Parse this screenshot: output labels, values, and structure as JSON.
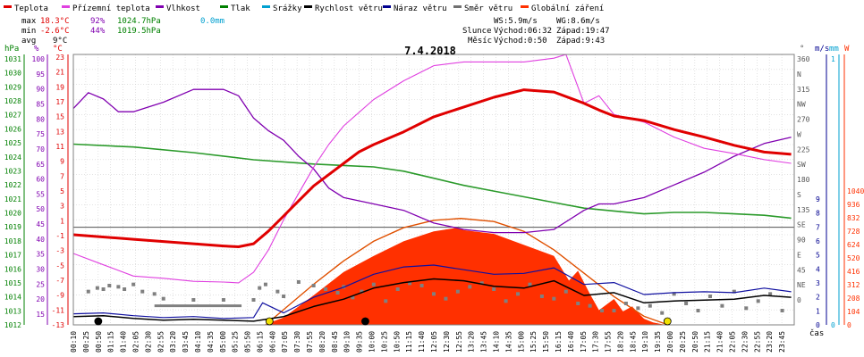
{
  "legend": [
    {
      "label": "Teplota",
      "color": "#e00000"
    },
    {
      "label": "Přízemní teplota",
      "color": "#e040e0"
    },
    {
      "label": "Vlhkost",
      "color": "#8000b0"
    },
    {
      "label": "Tlak",
      "color": "#008000"
    },
    {
      "label": "Srážky",
      "color": "#00a0d0"
    },
    {
      "label": "Rychlost větru",
      "color": "#000000"
    },
    {
      "label": "Náraz větru",
      "color": "#000090"
    },
    {
      "label": "Směr větru",
      "color": "#707070"
    },
    {
      "label": "Globální záření",
      "color": "#ff3000"
    }
  ],
  "stats": {
    "max_label": "max",
    "min_label": "min",
    "avg_label": "avg",
    "max_temp": "18.3°C",
    "max_hum": "92%",
    "max_press": "1024.7hPa",
    "max_rain": "0.0mm",
    "min_temp": "-2.6°C",
    "min_hum": "44%",
    "min_press": "1019.5hPa",
    "avg_temp": "9°C"
  },
  "wind_info": {
    "ws": "WS:5.9m/s",
    "wg": "WG:8.6m/s"
  },
  "sun_info": {
    "sun_label": "Slunce",
    "sun_rise": "Východ:06:32",
    "sun_set": "Západ:19:47",
    "moon_label": "Měsíc",
    "moon_rise": "Východ:0:50",
    "moon_set": "Západ:9:43"
  },
  "date": "7.4.2018",
  "axis_headers": {
    "hpa": "hPa",
    "pct": "%",
    "degc": "°C",
    "deg": "°",
    "ms": "m/s",
    "mm": "mm",
    "w": "W"
  },
  "x_title": "čas",
  "chart_data": {
    "type": "line",
    "title": "7.4.2018",
    "x_ticks": [
      "00:10",
      "00:25",
      "00:50",
      "01:15",
      "01:40",
      "02:05",
      "02:30",
      "02:55",
      "03:20",
      "03:45",
      "04:10",
      "04:35",
      "05:00",
      "05:25",
      "05:50",
      "06:15",
      "06:40",
      "07:05",
      "07:30",
      "07:55",
      "08:20",
      "08:45",
      "09:10",
      "09:35",
      "10:00",
      "10:25",
      "10:50",
      "11:15",
      "11:40",
      "12:05",
      "12:30",
      "12:55",
      "13:20",
      "13:45",
      "14:10",
      "14:35",
      "15:00",
      "15:25",
      "15:50",
      "16:15",
      "16:40",
      "17:05",
      "17:30",
      "17:55",
      "18:20",
      "18:45",
      "19:10",
      "19:35",
      "20:00",
      "20:25",
      "20:50",
      "21:15",
      "21:40",
      "22:05",
      "22:30",
      "22:55",
      "23:20",
      "23:45"
    ],
    "y_axes": {
      "pressure_hpa": [
        "1031",
        "1030",
        "1029",
        "1028",
        "1027",
        "1026",
        "1025",
        "1024",
        "1023",
        "1022",
        "1021",
        "1020",
        "1019",
        "1018",
        "1017",
        "1016",
        "1015",
        "1014",
        "1013",
        "1012"
      ],
      "humidity_pct": [
        "100",
        "95",
        "90",
        "85",
        "80",
        "75",
        "70",
        "65",
        "60",
        "55",
        "50",
        "45",
        "40",
        "35",
        "30",
        "25",
        "20",
        "15"
      ],
      "temperature_c": [
        "23",
        "21",
        "19",
        "17",
        "15",
        "13",
        "11",
        "9",
        "7",
        "5",
        "3",
        "1",
        "-1",
        "-3",
        "-5",
        "-7",
        "-9",
        "-11",
        "-13"
      ],
      "wind_dir": [
        "360",
        "N",
        "315",
        "NW",
        "270",
        "W",
        "225",
        "SW",
        "180",
        "S",
        "135",
        "SE",
        "90",
        "E",
        "45",
        "NE",
        "0"
      ],
      "wind_ms": [
        "9",
        "8",
        "7",
        "6",
        "5",
        "4",
        "3",
        "2",
        "1",
        "0"
      ],
      "rain_mm": [
        "1",
        "0"
      ],
      "radiation_w": [
        "1040",
        "936",
        "832",
        "728",
        "624",
        "520",
        "416",
        "312",
        "208",
        "104",
        "0"
      ]
    },
    "series": [
      {
        "name": "Teplota",
        "unit": "°C",
        "x_hours": [
          0,
          2,
          4,
          5,
          5.5,
          6,
          6.5,
          7,
          7.5,
          8,
          8.5,
          9,
          9.5,
          10,
          11,
          12,
          13,
          14,
          15,
          16,
          17,
          17.5,
          18,
          19,
          20,
          21,
          22,
          23,
          23.9
        ],
        "values": [
          -1,
          -1.6,
          -2.2,
          -2.5,
          -2.6,
          -2.2,
          -0.5,
          1.5,
          3.5,
          5.5,
          7,
          8.5,
          10,
          11,
          12.7,
          14.7,
          16,
          17.3,
          18.3,
          18,
          16.5,
          15.6,
          14.8,
          14.2,
          13,
          12,
          10.9,
          10,
          9.7
        ]
      },
      {
        "name": "Přízemní teplota",
        "unit": "°C",
        "x_hours": [
          0,
          1,
          2,
          3,
          4,
          5,
          5.5,
          6,
          6.5,
          7,
          7.5,
          8,
          8.5,
          9,
          10,
          11,
          12,
          13,
          14,
          15,
          16,
          16.4,
          17,
          17.5,
          18,
          19,
          20,
          21,
          22,
          23,
          23.9
        ],
        "values": [
          -3.5,
          -5,
          -6.5,
          -6.8,
          -7.2,
          -7.3,
          -7.4,
          -6,
          -3,
          1,
          4.5,
          8,
          11,
          13.5,
          17,
          19.5,
          21.5,
          22,
          22,
          22,
          22.5,
          23,
          16.5,
          17.5,
          15,
          14,
          12,
          10.5,
          9.8,
          9,
          8.5
        ]
      },
      {
        "name": "Vlhkost",
        "unit": "%",
        "x_hours": [
          0,
          0.5,
          1,
          1.5,
          2,
          3,
          4,
          5,
          5.5,
          6,
          6.5,
          7,
          7.5,
          8,
          8.5,
          9,
          10,
          11,
          12,
          13,
          14,
          15,
          16,
          17,
          17.5,
          18,
          19,
          20,
          21,
          22,
          23,
          23.9
        ],
        "values": [
          83,
          88,
          86,
          82,
          82,
          85,
          89,
          89,
          87,
          80,
          76,
          73,
          68,
          64,
          58,
          55,
          53,
          51,
          47,
          45,
          44,
          44,
          45,
          51,
          53,
          53,
          55,
          59,
          63,
          68,
          72,
          74
        ]
      },
      {
        "name": "Tlak",
        "unit": "hPa",
        "x_hours": [
          0,
          2,
          4,
          6,
          8,
          9,
          10,
          11,
          12,
          13,
          14,
          15,
          16,
          17,
          18,
          19,
          20,
          21,
          22,
          23,
          23.9
        ],
        "values": [
          1024.7,
          1024.5,
          1024.1,
          1023.6,
          1023.3,
          1023.2,
          1023.1,
          1022.8,
          1022.3,
          1021.8,
          1021.4,
          1021,
          1020.6,
          1020.2,
          1020,
          1019.8,
          1019.9,
          1019.9,
          1019.8,
          1019.7,
          1019.5
        ]
      },
      {
        "name": "Rychlost větru",
        "unit": "m/s",
        "x_hours": [
          0,
          1,
          2,
          3,
          4,
          5,
          6,
          7,
          8,
          9,
          10,
          11,
          12,
          13,
          14,
          15,
          16,
          17,
          18,
          19,
          20,
          21,
          22,
          23,
          23.9
        ],
        "values": [
          0.9,
          1,
          0.7,
          0.5,
          0.6,
          0.5,
          0.4,
          0.9,
          2,
          2.8,
          4,
          4.6,
          5,
          4.8,
          4.2,
          4,
          4.8,
          3.2,
          3.5,
          2.4,
          2.6,
          2.7,
          2.8,
          3.2,
          3
        ]
      },
      {
        "name": "Náraz větru",
        "unit": "m/s",
        "x_hours": [
          0,
          1,
          2,
          3,
          4,
          5,
          6,
          6.3,
          7,
          8,
          9,
          10,
          11,
          12,
          13,
          14,
          15,
          16,
          17,
          18,
          19,
          20,
          21,
          22,
          23,
          23.9
        ],
        "values": [
          1.2,
          1.3,
          1,
          0.8,
          0.9,
          0.7,
          0.8,
          2.4,
          1.3,
          3,
          4.1,
          5.5,
          6.3,
          6.5,
          6,
          5.5,
          5.6,
          6.2,
          4.4,
          4.6,
          3.3,
          3.5,
          3.6,
          3.5,
          4,
          3.6
        ]
      },
      {
        "name": "Globální záření",
        "unit": "W",
        "x_hours": [
          6.4,
          7,
          8,
          9,
          10,
          11,
          12,
          12.8,
          13,
          14,
          15,
          16,
          16.5,
          16.8,
          17.2,
          17.5,
          18,
          18.3,
          18.6,
          19,
          19.3,
          19.6,
          19.8
        ],
        "values": [
          5,
          60,
          240,
          430,
          560,
          680,
          760,
          790,
          770,
          740,
          650,
          560,
          360,
          440,
          250,
          120,
          210,
          110,
          150,
          50,
          20,
          5,
          0
        ]
      },
      {
        "name": "Teoretické záření",
        "unit": "W",
        "x_hours": [
          6.4,
          8,
          9,
          10,
          11,
          12,
          12.9,
          14,
          15,
          16,
          17,
          18,
          19,
          19.8
        ],
        "values": [
          0,
          330,
          520,
          680,
          790,
          850,
          865,
          840,
          760,
          610,
          420,
          230,
          70,
          0
        ]
      },
      {
        "name": "Směr větru",
        "unit": "°",
        "x_hours": [
          0.5,
          0.8,
          1,
          1.2,
          1.5,
          1.7,
          2,
          2.3,
          2.7,
          3,
          4,
          5,
          6,
          6.2,
          6.4,
          6.8,
          7,
          7.5,
          8,
          8.4,
          8.8,
          9,
          9.3,
          9.6,
          10,
          10.4,
          10.8,
          11.2,
          11.6,
          12,
          12.4,
          12.8,
          13.2,
          13.6,
          14,
          14.4,
          14.8,
          15.2,
          15.6,
          16,
          16.4,
          16.8,
          17.2,
          17.6,
          18,
          18.4,
          18.8,
          19.2,
          19.6,
          20,
          20.4,
          20.8,
          21.2,
          21.6,
          22,
          22.4,
          22.8,
          23.2,
          23.6
        ],
        "values": [
          140,
          155,
          150,
          165,
          160,
          150,
          170,
          140,
          130,
          110,
          105,
          105,
          105,
          155,
          170,
          140,
          120,
          180,
          165,
          150,
          135,
          160,
          115,
          140,
          170,
          100,
          150,
          175,
          165,
          130,
          110,
          140,
          160,
          175,
          150,
          100,
          130,
          170,
          120,
          110,
          140,
          90,
          80,
          60,
          60,
          90,
          70,
          80,
          50,
          130,
          90,
          60,
          120,
          80,
          140,
          70,
          100,
          130,
          60
        ]
      }
    ],
    "markers": [
      {
        "label": "sunrise",
        "x_hours": 6.53,
        "color": "#f0e000"
      },
      {
        "label": "sunset",
        "x_hours": 19.78,
        "color": "#f0e000"
      },
      {
        "label": "moonrise",
        "x_hours": 0.83,
        "color": "#000000"
      },
      {
        "label": "moonset",
        "x_hours": 9.72,
        "color": "#000000"
      }
    ]
  },
  "colors": {
    "grid": "#d0d0d0",
    "accent_red": "#e00000",
    "radiation": "#ff3000"
  }
}
